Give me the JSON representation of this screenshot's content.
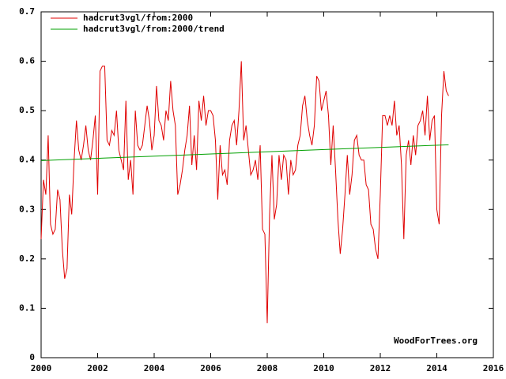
{
  "chart_data": {
    "type": "line",
    "annotation": "WoodForTrees.org",
    "xlim": [
      2000,
      2016
    ],
    "xticks": [
      2000,
      2002,
      2004,
      2006,
      2008,
      2010,
      2012,
      2014,
      2016
    ],
    "ylim": [
      0,
      0.7
    ],
    "yticks": [
      0,
      0.1,
      0.2,
      0.3,
      0.4,
      0.5,
      0.6,
      0.7
    ],
    "legend": "top-left",
    "series": [
      {
        "name": "hadcrut3vgl/from:2000",
        "color": "#e00000",
        "x": [
          2000,
          2000.083,
          2000.167,
          2000.25,
          2000.333,
          2000.417,
          2000.5,
          2000.583,
          2000.667,
          2000.75,
          2000.833,
          2000.917,
          2001,
          2001.083,
          2001.167,
          2001.25,
          2001.333,
          2001.417,
          2001.5,
          2001.583,
          2001.667,
          2001.75,
          2001.833,
          2001.917,
          2002,
          2002.083,
          2002.167,
          2002.25,
          2002.333,
          2002.417,
          2002.5,
          2002.583,
          2002.667,
          2002.75,
          2002.833,
          2002.917,
          2003,
          2003.083,
          2003.167,
          2003.25,
          2003.333,
          2003.417,
          2003.5,
          2003.583,
          2003.667,
          2003.75,
          2003.833,
          2003.917,
          2004,
          2004.083,
          2004.167,
          2004.25,
          2004.333,
          2004.417,
          2004.5,
          2004.583,
          2004.667,
          2004.75,
          2004.833,
          2004.917,
          2005,
          2005.083,
          2005.167,
          2005.25,
          2005.333,
          2005.417,
          2005.5,
          2005.583,
          2005.667,
          2005.75,
          2005.833,
          2005.917,
          2006,
          2006.083,
          2006.167,
          2006.25,
          2006.333,
          2006.417,
          2006.5,
          2006.583,
          2006.667,
          2006.75,
          2006.833,
          2006.917,
          2007,
          2007.083,
          2007.167,
          2007.25,
          2007.333,
          2007.417,
          2007.5,
          2007.583,
          2007.667,
          2007.75,
          2007.833,
          2007.917,
          2008,
          2008.083,
          2008.167,
          2008.25,
          2008.333,
          2008.417,
          2008.5,
          2008.583,
          2008.667,
          2008.75,
          2008.833,
          2008.917,
          2009,
          2009.083,
          2009.167,
          2009.25,
          2009.333,
          2009.417,
          2009.5,
          2009.583,
          2009.667,
          2009.75,
          2009.833,
          2009.917,
          2010,
          2010.083,
          2010.167,
          2010.25,
          2010.333,
          2010.417,
          2010.5,
          2010.583,
          2010.667,
          2010.75,
          2010.833,
          2010.917,
          2011,
          2011.083,
          2011.167,
          2011.25,
          2011.333,
          2011.417,
          2011.5,
          2011.583,
          2011.667,
          2011.75,
          2011.833,
          2011.917,
          2012,
          2012.083,
          2012.167,
          2012.25,
          2012.333,
          2012.417,
          2012.5,
          2012.583,
          2012.667,
          2012.75,
          2012.833,
          2012.917,
          2013,
          2013.083,
          2013.167,
          2013.25,
          2013.333,
          2013.417,
          2013.5,
          2013.583,
          2013.667,
          2013.75,
          2013.833,
          2013.917,
          2014,
          2014.083,
          2014.167,
          2014.25,
          2014.333,
          2014.417
        ],
        "values": [
          0.24,
          0.36,
          0.33,
          0.45,
          0.27,
          0.25,
          0.26,
          0.34,
          0.32,
          0.22,
          0.16,
          0.18,
          0.33,
          0.29,
          0.4,
          0.48,
          0.42,
          0.4,
          0.43,
          0.47,
          0.42,
          0.4,
          0.44,
          0.49,
          0.33,
          0.58,
          0.59,
          0.59,
          0.44,
          0.43,
          0.46,
          0.45,
          0.5,
          0.42,
          0.4,
          0.38,
          0.52,
          0.36,
          0.4,
          0.33,
          0.5,
          0.43,
          0.42,
          0.43,
          0.47,
          0.51,
          0.48,
          0.42,
          0.45,
          0.55,
          0.48,
          0.47,
          0.44,
          0.5,
          0.48,
          0.56,
          0.5,
          0.47,
          0.33,
          0.35,
          0.38,
          0.42,
          0.45,
          0.51,
          0.39,
          0.45,
          0.38,
          0.52,
          0.48,
          0.53,
          0.47,
          0.5,
          0.5,
          0.49,
          0.44,
          0.32,
          0.43,
          0.37,
          0.38,
          0.35,
          0.44,
          0.47,
          0.48,
          0.43,
          0.5,
          0.6,
          0.44,
          0.47,
          0.42,
          0.37,
          0.38,
          0.4,
          0.36,
          0.43,
          0.26,
          0.25,
          0.07,
          0.29,
          0.41,
          0.28,
          0.31,
          0.41,
          0.36,
          0.41,
          0.4,
          0.33,
          0.4,
          0.37,
          0.38,
          0.43,
          0.45,
          0.51,
          0.53,
          0.48,
          0.45,
          0.43,
          0.47,
          0.57,
          0.56,
          0.5,
          0.52,
          0.54,
          0.49,
          0.39,
          0.47,
          0.38,
          0.28,
          0.21,
          0.26,
          0.33,
          0.41,
          0.33,
          0.37,
          0.44,
          0.45,
          0.41,
          0.4,
          0.4,
          0.35,
          0.34,
          0.27,
          0.26,
          0.22,
          0.2,
          0.33,
          0.49,
          0.49,
          0.47,
          0.49,
          0.47,
          0.52,
          0.45,
          0.47,
          0.39,
          0.24,
          0.41,
          0.44,
          0.39,
          0.45,
          0.41,
          0.47,
          0.48,
          0.5,
          0.45,
          0.53,
          0.44,
          0.48,
          0.49,
          0.3,
          0.27,
          0.49,
          0.58,
          0.54,
          0.53
        ]
      },
      {
        "name": "hadcrut3vgl/from:2000/trend",
        "color": "#00a000",
        "x": [
          2000,
          2014.417
        ],
        "values": [
          0.399,
          0.431
        ]
      }
    ]
  }
}
